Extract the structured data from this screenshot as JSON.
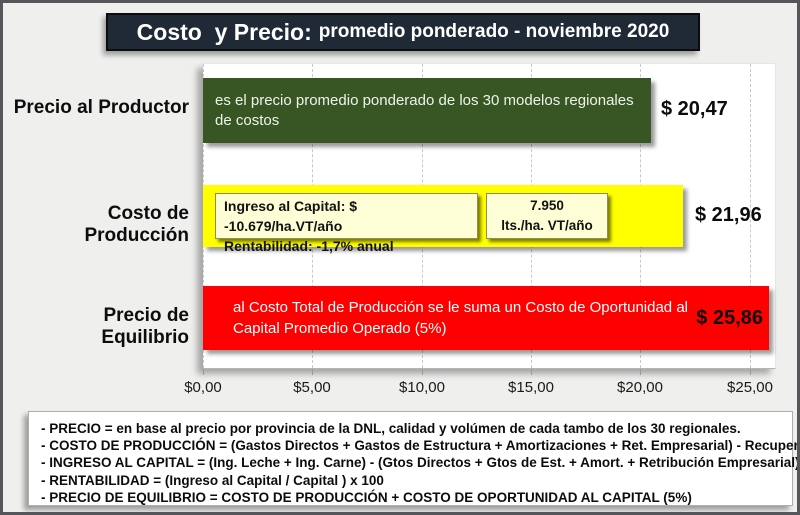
{
  "title": {
    "main": "Costo  y Precio:",
    "sub": "promedio ponderado - noviembre 2020"
  },
  "chart_data": {
    "type": "bar",
    "orientation": "horizontal",
    "title": "Costo  y Precio: promedio ponderado - noviembre 2020",
    "categories": [
      "Precio al Productor",
      "Costo de Producción",
      "Precio de Equilibrio"
    ],
    "values": [
      20.47,
      21.96,
      25.86
    ],
    "xlim": [
      0,
      26.2
    ],
    "x_ticks": [
      "$0,00",
      "$5,00",
      "$10,00",
      "$15,00",
      "$20,00",
      "$25,00"
    ],
    "grid": "vertical-dashed",
    "legend": "none",
    "bars": [
      {
        "label": "Precio al Productor",
        "value": 20.47,
        "value_label": "$ 20,47",
        "color": "#375623",
        "annotation": "es el precio promedio ponderado de los 30 modelos regionales de costos"
      },
      {
        "label": "Costo de Producción",
        "value": 21.96,
        "value_label": "$ 21,96",
        "color": "#ffff00",
        "note_box_1": {
          "line1": "Ingreso al Capital: $ -10.679/ha.VT/año",
          "line2": "Rentabilidad: -1,7% anual"
        },
        "note_box_2": {
          "line1": "7.950",
          "line2": "lts./ha. VT/año"
        }
      },
      {
        "label": "Precio de Equilibrio",
        "value": 25.86,
        "value_label": "$ 25,86",
        "color": "#ff0000",
        "annotation": "al Costo Total de Producción se le suma un Costo de Oportunidad al Capital Promedio Operado (5%)"
      }
    ]
  },
  "footnotes": {
    "lines": [
      "- PRECIO = en base al precio por provincia de la DNL, calidad y volúmen de cada tambo de los 30 regionales.",
      "- COSTO DE PRODUCCIÓN = (Gastos Directos + Gastos de Estructura + Amortizaciones + Ret. Empresarial) - Recuperos",
      "- INGRESO AL CAPITAL = (Ing. Leche + Ing. Carne) - (Gtos Directos + Gtos de Est. + Amort. + Retribución Empresarial)",
      "- RENTABILIDAD = (Ingreso al Capital / Capital ) x 100",
      "- PRECIO DE EQUILIBRIO = COSTO DE PRODUCCIÓN + COSTO DE OPORTUNIDAD AL CAPITAL (5%)"
    ]
  },
  "colors": {
    "title_background": "#1f2a36",
    "green_bar": "#375623",
    "yellow_bar": "#ffff00",
    "red_bar": "#ff0000",
    "note_box_background": "#fdfdd6",
    "page_background": "#efefee"
  }
}
